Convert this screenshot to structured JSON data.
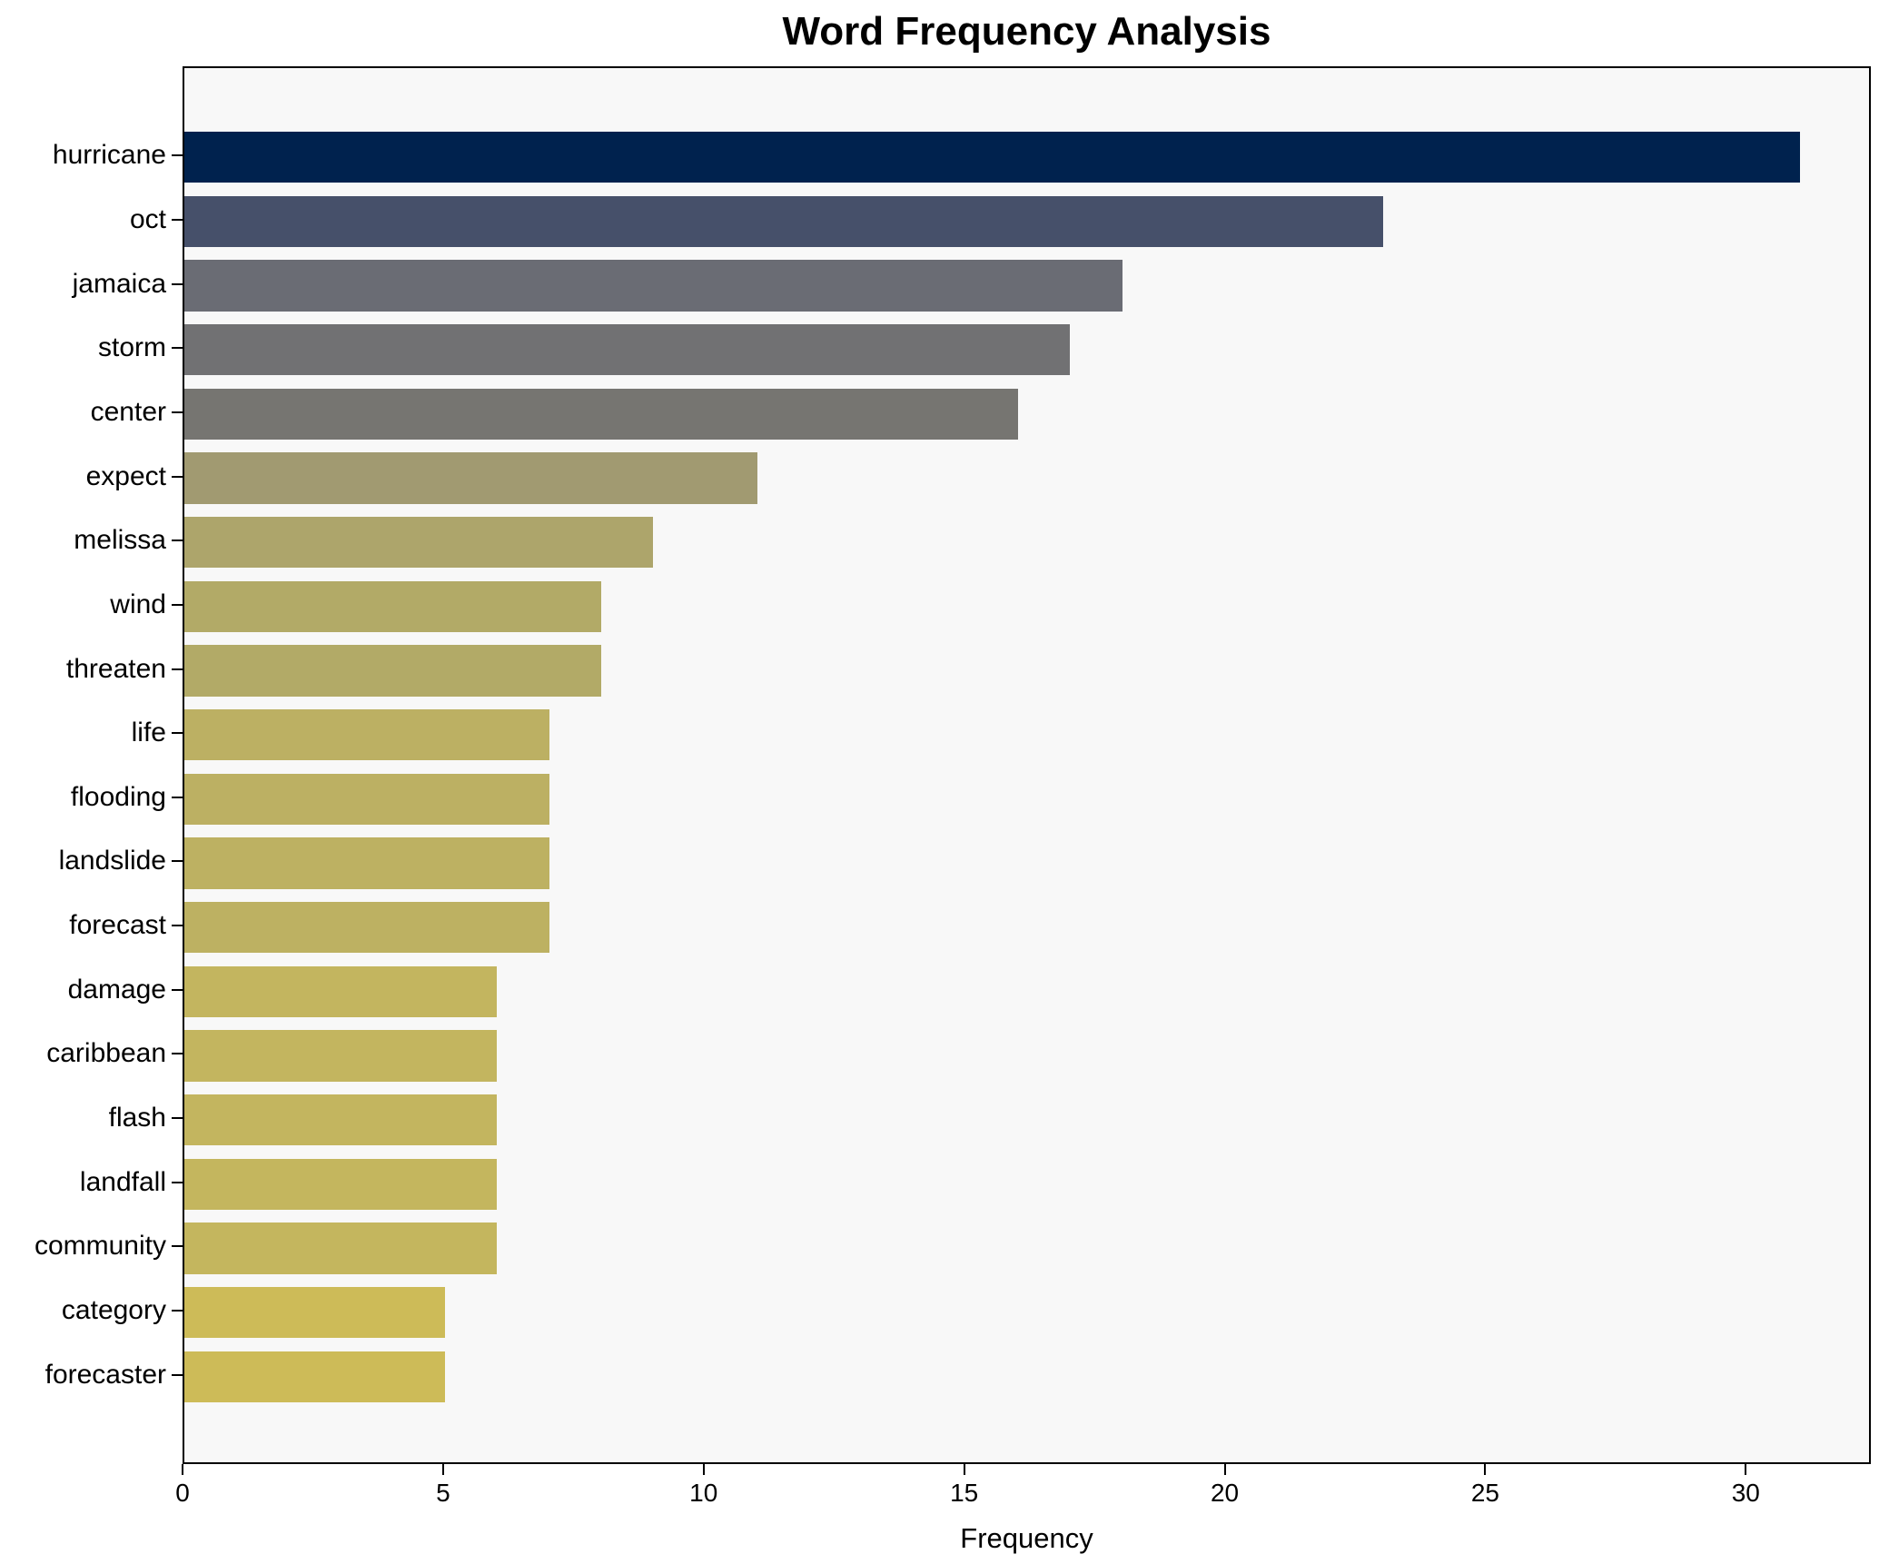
{
  "chart_data": {
    "type": "bar",
    "orientation": "horizontal",
    "title": "Word Frequency Analysis",
    "xlabel": "Frequency",
    "ylabel": "",
    "categories": [
      "hurricane",
      "oct",
      "jamaica",
      "storm",
      "center",
      "expect",
      "melissa",
      "wind",
      "threaten",
      "life",
      "flooding",
      "landslide",
      "forecast",
      "damage",
      "caribbean",
      "flash",
      "landfall",
      "community",
      "category",
      "forecaster"
    ],
    "values": [
      31,
      23,
      18,
      17,
      16,
      11,
      9,
      8,
      8,
      7,
      7,
      7,
      7,
      6,
      6,
      6,
      6,
      6,
      5,
      5
    ],
    "bar_colors": [
      "#00224e",
      "#46506a",
      "#6a6c74",
      "#717173",
      "#767571",
      "#a19a71",
      "#ada56b",
      "#b2aa67",
      "#b2aa67",
      "#bcb063",
      "#bcb063",
      "#bdb162",
      "#bdb162",
      "#c3b55f",
      "#c3b55f",
      "#c3b55f",
      "#c4b65e",
      "#c4b65e",
      "#cdbb58",
      "#cdbb58"
    ],
    "xlim": [
      0,
      32.4
    ],
    "xticks": [
      0,
      5,
      10,
      15,
      20,
      25,
      30
    ],
    "grid": false,
    "legend": "none",
    "plot_background": "#f8f8f8",
    "figure_background": "#ffffff",
    "spine_color": "#000000",
    "text_color": "#000000"
  }
}
